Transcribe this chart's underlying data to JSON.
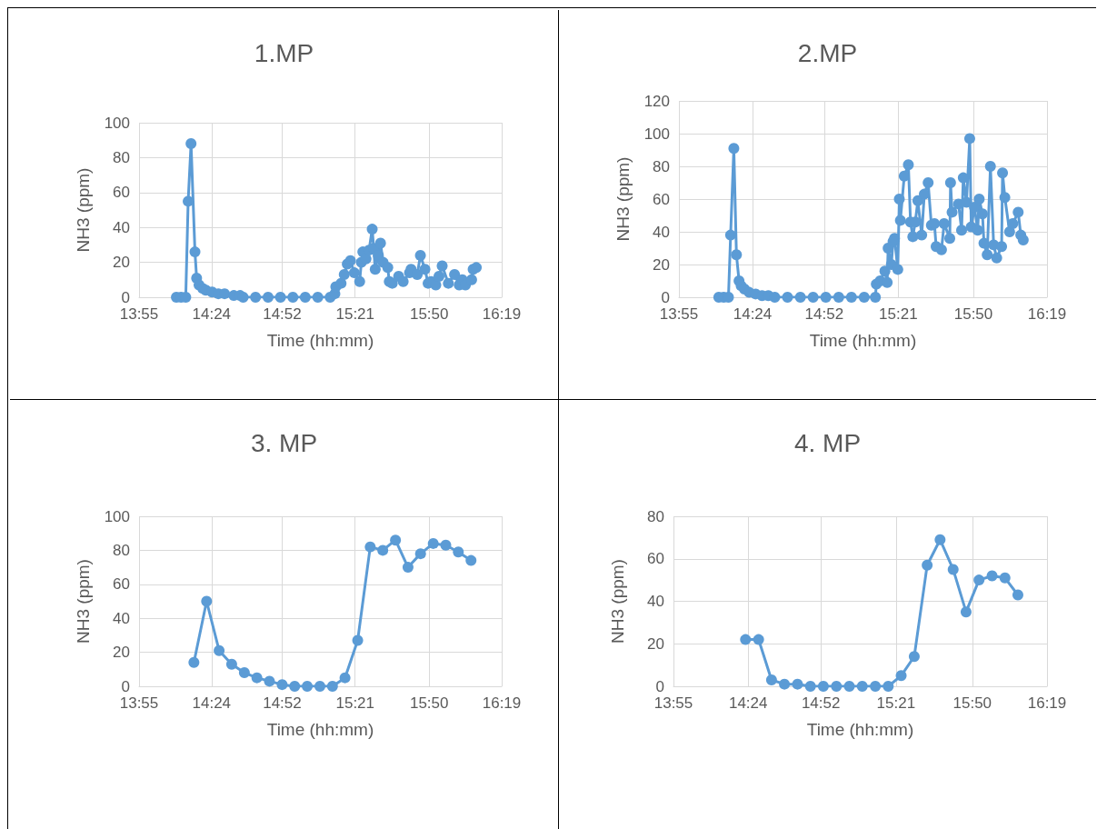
{
  "chart_data": [
    {
      "type": "line",
      "title": "1.MP",
      "xlabel": "Time (hh:mm)",
      "ylabel": "NH3 (ppm)",
      "xlim": [
        13.92,
        16.32
      ],
      "xticks": [
        {
          "value": 13.92,
          "label": "13:55"
        },
        {
          "value": 14.4,
          "label": "14:24"
        },
        {
          "value": 14.867,
          "label": "14:52"
        },
        {
          "value": 15.35,
          "label": "15:21"
        },
        {
          "value": 15.84,
          "label": "15:50"
        },
        {
          "value": 16.32,
          "label": "16:19"
        }
      ],
      "ylim": [
        0,
        100
      ],
      "yticks": [
        0,
        20,
        40,
        60,
        80,
        100
      ],
      "grid": true,
      "marker": "circle",
      "line_style": "solid",
      "series": [
        {
          "color": "#5b9bd5",
          "x": [
            14.167,
            14.198,
            14.229,
            14.245,
            14.264,
            14.29,
            14.301,
            14.317,
            14.342,
            14.362,
            14.403,
            14.445,
            14.486,
            14.547,
            14.589,
            14.609,
            14.691,
            14.774,
            14.856,
            14.938,
            15.02,
            15.103,
            15.185,
            15.216,
            15.222,
            15.257,
            15.278,
            15.298,
            15.319,
            15.345,
            15.38,
            15.391,
            15.401,
            15.422,
            15.442,
            15.463,
            15.473,
            15.483,
            15.504,
            15.518,
            15.535,
            15.566,
            15.576,
            15.596,
            15.638,
            15.668,
            15.71,
            15.72,
            15.761,
            15.782,
            15.812,
            15.833,
            15.853,
            15.884,
            15.905,
            15.926,
            15.967,
            16.008,
            16.039,
            16.059,
            16.08,
            16.121,
            16.131,
            16.152
          ],
          "values": [
            0,
            0,
            0,
            55,
            88,
            26,
            11,
            7,
            5,
            4,
            3,
            2,
            2,
            1,
            1,
            0,
            0,
            0,
            0,
            0,
            0,
            0,
            0,
            2,
            6,
            8,
            13,
            19,
            21,
            14,
            9,
            20,
            26,
            22,
            27,
            39,
            28,
            16,
            24,
            31,
            20,
            17,
            9,
            8,
            12,
            9,
            14,
            16,
            13,
            24,
            16,
            8,
            9,
            7,
            12,
            18,
            8,
            13,
            7,
            10,
            7,
            10,
            16,
            17
          ]
        }
      ]
    },
    {
      "type": "line",
      "title": "2.MP",
      "xlabel": "Time (hh:mm)",
      "ylabel": "NH3 (ppm)",
      "xlim": [
        13.92,
        16.32
      ],
      "xticks": [
        {
          "value": 13.92,
          "label": "13:55"
        },
        {
          "value": 14.4,
          "label": "14:24"
        },
        {
          "value": 14.867,
          "label": "14:52"
        },
        {
          "value": 15.35,
          "label": "15:21"
        },
        {
          "value": 15.84,
          "label": "15:50"
        },
        {
          "value": 16.32,
          "label": "16:19"
        }
      ],
      "ylim": [
        0,
        120
      ],
      "yticks": [
        0,
        20,
        40,
        60,
        80,
        100,
        120
      ],
      "grid": true,
      "marker": "circle",
      "line_style": "solid",
      "series": [
        {
          "color": "#5b9bd5",
          "x": [
            14.18,
            14.212,
            14.243,
            14.257,
            14.278,
            14.295,
            14.312,
            14.326,
            14.347,
            14.378,
            14.42,
            14.462,
            14.503,
            14.545,
            14.628,
            14.712,
            14.795,
            14.878,
            14.962,
            15.045,
            15.128,
            15.201,
            15.207,
            15.232,
            15.263,
            15.278,
            15.284,
            15.305,
            15.316,
            15.326,
            15.347,
            15.357,
            15.364,
            15.389,
            15.416,
            15.43,
            15.445,
            15.461,
            15.478,
            15.503,
            15.52,
            15.545,
            15.566,
            15.586,
            15.597,
            15.632,
            15.649,
            15.686,
            15.691,
            15.701,
            15.743,
            15.763,
            15.774,
            15.795,
            15.816,
            15.826,
            15.847,
            15.868,
            15.878,
            15.899,
            15.909,
            15.93,
            15.951,
            15.972,
            15.992,
            16.024,
            16.03,
            16.045,
            16.076,
            16.097,
            16.132,
            16.149,
            16.165
          ],
          "values": [
            0,
            0,
            0,
            38,
            91,
            26,
            10,
            7,
            5,
            3,
            2,
            1,
            1,
            0,
            0,
            0,
            0,
            0,
            0,
            0,
            0,
            0,
            8,
            10,
            16,
            9,
            30,
            20,
            34,
            36,
            17,
            60,
            47,
            74,
            81,
            46,
            37,
            46,
            59,
            38,
            63,
            70,
            44,
            45,
            31,
            29,
            45,
            36,
            70,
            52,
            57,
            41,
            73,
            58,
            97,
            43,
            55,
            41,
            60,
            51,
            33,
            26,
            80,
            32,
            24,
            31,
            76,
            61,
            40,
            45,
            52,
            38,
            35
          ]
        }
      ]
    },
    {
      "type": "line",
      "title": "3. MP",
      "xlabel": "Time (hh:mm)",
      "ylabel": "NH3 (ppm)",
      "xlim": [
        13.92,
        16.32
      ],
      "xticks": [
        {
          "value": 13.92,
          "label": "13:55"
        },
        {
          "value": 14.4,
          "label": "14:24"
        },
        {
          "value": 14.867,
          "label": "14:52"
        },
        {
          "value": 15.35,
          "label": "15:21"
        },
        {
          "value": 15.84,
          "label": "15:50"
        },
        {
          "value": 16.32,
          "label": "16:19"
        }
      ],
      "ylim": [
        0,
        100
      ],
      "yticks": [
        0,
        20,
        40,
        60,
        80,
        100
      ],
      "grid": true,
      "marker": "circle",
      "line_style": "solid",
      "series": [
        {
          "color": "#5b9bd5",
          "x": [
            14.283,
            14.367,
            14.45,
            14.533,
            14.617,
            14.7,
            14.783,
            14.867,
            14.95,
            15.033,
            15.117,
            15.2,
            15.283,
            15.367,
            15.45,
            15.533,
            15.617,
            15.7,
            15.783,
            15.867,
            15.95,
            16.033,
            16.117
          ],
          "values": [
            14,
            50,
            21,
            13,
            8,
            5,
            3,
            1,
            0,
            0,
            0,
            0,
            5,
            27,
            82,
            80,
            86,
            70,
            78,
            84,
            83,
            79,
            74
          ]
        }
      ]
    },
    {
      "type": "line",
      "title": "4. MP",
      "xlabel": "Time (hh:mm)",
      "ylabel": "NH3 (ppm)",
      "xlim": [
        13.92,
        16.32
      ],
      "xticks": [
        {
          "value": 13.92,
          "label": "13:55"
        },
        {
          "value": 14.4,
          "label": "14:24"
        },
        {
          "value": 14.867,
          "label": "14:52"
        },
        {
          "value": 15.35,
          "label": "15:21"
        },
        {
          "value": 15.84,
          "label": "15:50"
        },
        {
          "value": 16.32,
          "label": "16:19"
        }
      ],
      "ylim": [
        0,
        80
      ],
      "yticks": [
        0,
        20,
        40,
        60,
        80
      ],
      "grid": true,
      "marker": "circle",
      "line_style": "solid",
      "series": [
        {
          "color": "#5b9bd5",
          "x": [
            14.383,
            14.467,
            14.55,
            14.633,
            14.717,
            14.8,
            14.883,
            14.967,
            15.05,
            15.133,
            15.217,
            15.3,
            15.383,
            15.467,
            15.55,
            15.633,
            15.717,
            15.8,
            15.883,
            15.967,
            16.05,
            16.133
          ],
          "values": [
            22,
            22,
            3,
            1,
            1,
            0,
            0,
            0,
            0,
            0,
            0,
            0,
            5,
            14,
            57,
            69,
            55,
            35,
            50,
            52,
            51,
            43
          ]
        }
      ]
    }
  ]
}
